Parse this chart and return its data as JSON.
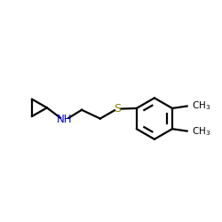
{
  "background_color": "#ffffff",
  "bond_color": "#000000",
  "N_color": "#0000cd",
  "S_color": "#8b8000",
  "text_color": "#000000",
  "figsize": [
    2.5,
    2.5
  ],
  "dpi": 100,
  "lw": 1.6
}
